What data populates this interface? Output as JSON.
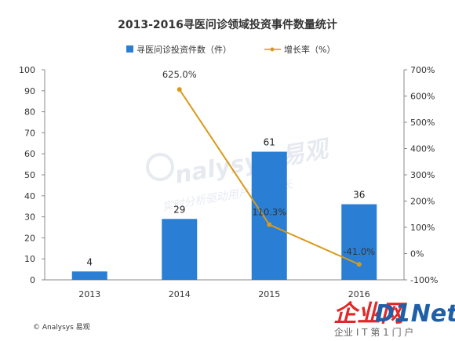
{
  "chart_data": {
    "type": "bar",
    "title": "2013-2016寻医问诊领域投资事件数量统计",
    "categories": [
      "2013",
      "2014",
      "2015",
      "2016"
    ],
    "series": [
      {
        "name": "寻医问诊投资件数（件）",
        "type": "bar",
        "axis": "left",
        "values": [
          4,
          29,
          61,
          36
        ],
        "labels": [
          "4",
          "29",
          "61",
          "36"
        ],
        "color": "#2a7fd4"
      },
      {
        "name": "增长率（%）",
        "type": "line",
        "axis": "right",
        "values": [
          null,
          625.0,
          110.3,
          -41.0
        ],
        "labels": [
          "",
          "625.0%",
          "110.3%",
          "-41.0%"
        ],
        "color": "#d89a1a"
      }
    ],
    "y_left": {
      "range": [
        0,
        100
      ],
      "ticks": [
        "0",
        "10",
        "20",
        "30",
        "40",
        "50",
        "60",
        "70",
        "80",
        "90",
        "100"
      ]
    },
    "y_right": {
      "range": [
        -100,
        700
      ],
      "ticks": [
        "-100%",
        "0%",
        "100%",
        "200%",
        "300%",
        "400%",
        "500%",
        "600%",
        "700%"
      ]
    },
    "legend_position": "top"
  },
  "watermark": {
    "main": "nalysys 易观",
    "sub": "实时分析驱动用户资产成长"
  },
  "footer": {
    "source": "© Analysys 易观"
  },
  "brand": {
    "name_cn": "企业网",
    "name_en": "D1Net",
    "subtitle": "企业 I T 第 1 门 户",
    "color_red": "#e02828",
    "color_blue": "#1f5fa8"
  }
}
